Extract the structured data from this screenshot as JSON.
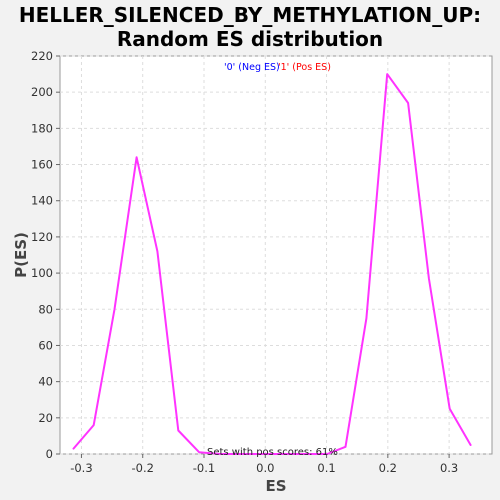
{
  "chart_data": {
    "type": "line",
    "title_lines": [
      "HELLER_SILENCED_BY_METHYLATION_UP:",
      "Random ES distribution"
    ],
    "xlabel": "ES",
    "ylabel": "P(ES)",
    "xlim": [
      -0.335,
      0.37
    ],
    "ylim": [
      0,
      220
    ],
    "xticks": [
      -0.3,
      -0.2,
      -0.1,
      0.0,
      0.1,
      0.2,
      0.3
    ],
    "xtick_labels": [
      "-0.3",
      "-0.2",
      "-0.1",
      "0.0",
      "0.1",
      "0.2",
      "0.3"
    ],
    "yticks": [
      0,
      20,
      40,
      60,
      80,
      100,
      120,
      140,
      160,
      180,
      200,
      220
    ],
    "ytick_labels": [
      "0",
      "20",
      "40",
      "60",
      "80",
      "100",
      "120",
      "140",
      "160",
      "180",
      "200",
      "220"
    ],
    "grid": true,
    "legend": {
      "position": "top-center",
      "entries": [
        {
          "label": "'0' (Neg ES)",
          "color": "#0000ff"
        },
        {
          "label": "'1' (Pos ES)",
          "color": "#ff0000"
        }
      ]
    },
    "annotation": "Sets with pos scores: 61%",
    "series": [
      {
        "color": "#ff33ff",
        "x": [
          -0.313,
          -0.28,
          -0.246,
          -0.21,
          -0.176,
          -0.142,
          -0.108,
          -0.074,
          0.101,
          0.131,
          0.165,
          0.199,
          0.233,
          0.267,
          0.301,
          0.335
        ],
        "y": [
          3,
          16,
          80,
          164,
          112,
          13,
          1,
          0,
          0,
          4,
          75,
          210,
          194,
          97,
          25,
          5
        ]
      }
    ]
  }
}
